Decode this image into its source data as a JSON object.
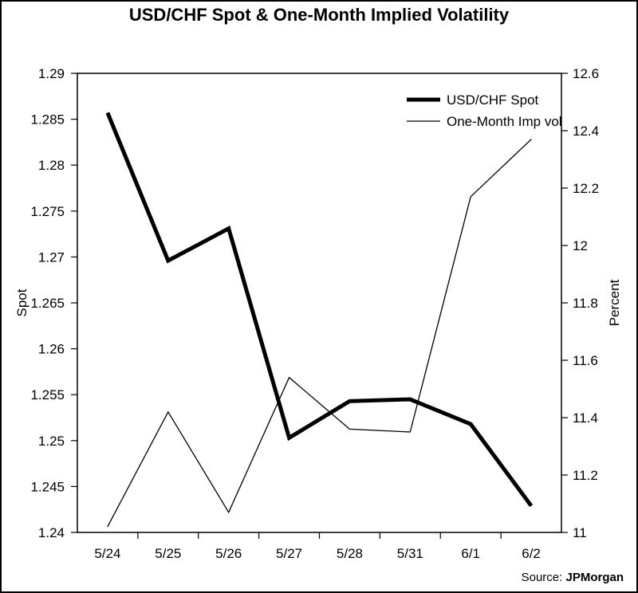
{
  "chart_data": {
    "type": "line",
    "title": "USD/CHF Spot & One-Month Implied Volatility",
    "categories": [
      "5/24",
      "5/25",
      "5/26",
      "5/27",
      "5/28",
      "5/31",
      "6/1",
      "6/2"
    ],
    "series": [
      {
        "name": "USD/CHF Spot",
        "axis": "left",
        "style": "thick",
        "color": "#000000",
        "values": [
          1.2857,
          1.2696,
          1.2731,
          1.2503,
          1.2543,
          1.2545,
          1.2518,
          1.2429
        ]
      },
      {
        "name": "One-Month Imp vol",
        "axis": "right",
        "style": "thin",
        "color": "#000000",
        "values": [
          11.02,
          11.42,
          11.07,
          11.54,
          11.36,
          11.35,
          12.17,
          12.37
        ]
      }
    ],
    "ylabel": "Spot",
    "y2label": "Percent",
    "ylim": [
      1.24,
      1.29
    ],
    "y2lim": [
      11,
      12.6
    ],
    "yticks": [
      "1.24",
      "1.245",
      "1.25",
      "1.255",
      "1.26",
      "1.265",
      "1.27",
      "1.275",
      "1.28",
      "1.285",
      "1.29"
    ],
    "y2ticks": [
      "11",
      "11.2",
      "11.4",
      "11.6",
      "11.8",
      "12",
      "12.2",
      "12.4",
      "12.6"
    ],
    "legend_position": "top-right",
    "grid": false
  },
  "source": {
    "label": "Source:",
    "name": "JPMorgan"
  }
}
